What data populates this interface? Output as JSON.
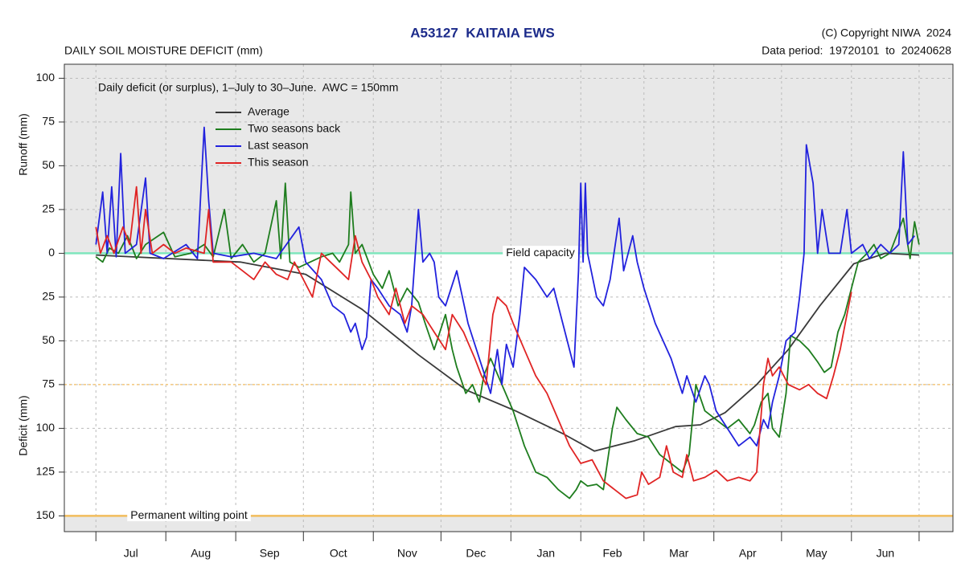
{
  "chart_data": {
    "type": "line",
    "title": "A53127  KAITAIA EWS",
    "copyright": "(C) Copyright NIWA  2024",
    "subtitle": "DAILY SOIL MOISTURE DEFICIT (mm)",
    "data_period": "Data period:  19720101  to  20240628",
    "note": "Daily deficit (or surplus), 1–July to 30–June.  AWC = 150mm",
    "ylabel_top": "Runoff (mm)",
    "ylabel_bottom": "Deficit (mm)",
    "categories": [
      "Jul",
      "Aug",
      "Sep",
      "Oct",
      "Nov",
      "Dec",
      "Jan",
      "Feb",
      "Mar",
      "Apr",
      "May",
      "Jun"
    ],
    "xticks": [
      0,
      31,
      62,
      92,
      123,
      153,
      184,
      215,
      243,
      274,
      304,
      335,
      365
    ],
    "xlim": [
      -14,
      380
    ],
    "ylim": [
      -159,
      108
    ],
    "yticks": [
      100,
      75,
      50,
      25,
      0,
      {
        "value": -25,
        "label": "25"
      },
      {
        "value": -50,
        "label": "50"
      },
      {
        "value": -75,
        "label": "75"
      },
      {
        "value": -100,
        "label": "100"
      },
      {
        "value": -125,
        "label": "125"
      },
      {
        "value": -150,
        "label": "150"
      }
    ],
    "grid": true,
    "reference_lines": [
      {
        "value": 0,
        "label": "Field capacity",
        "color": "#7fe6bd",
        "shade": "above"
      },
      {
        "value": -150,
        "label": "Permanent wilting point",
        "color": "#f2bd5c",
        "shade": "below"
      },
      {
        "value": -75,
        "color": "#f5c77a",
        "style": "dotted"
      }
    ],
    "series": [
      {
        "name": "Average",
        "color": "#3a3a3a",
        "x": [
          0,
          64,
          93,
          118,
          143,
          164,
          186,
          207,
          221,
          239,
          257,
          268,
          279,
          293,
          307,
          321,
          336,
          350,
          365
        ],
        "values": [
          -1,
          -5,
          -12,
          -32,
          -58,
          -78,
          -90,
          -103,
          -113,
          -107,
          -99,
          -98,
          -91,
          -75,
          -55,
          -30,
          -6,
          0,
          -1
        ]
      },
      {
        "name": "Two seasons back",
        "color": "#1e7d1e",
        "x": [
          0,
          3,
          6,
          10,
          14,
          18,
          22,
          30,
          35,
          42,
          48,
          52,
          57,
          60,
          65,
          70,
          75,
          80,
          82,
          84,
          86,
          90,
          95,
          100,
          105,
          108,
          112,
          113,
          115,
          118,
          123,
          127,
          130,
          134,
          138,
          143,
          146,
          150,
          155,
          158,
          160,
          164,
          167,
          170,
          172,
          175,
          180,
          185,
          190,
          195,
          200,
          205,
          210,
          213,
          215,
          218,
          222,
          225,
          229,
          231,
          235,
          240,
          245,
          250,
          255,
          260,
          263,
          266,
          270,
          275,
          280,
          285,
          290,
          292,
          295,
          298,
          300,
          303,
          306,
          308,
          312,
          316,
          320,
          323,
          326,
          329,
          332,
          335,
          338,
          342,
          345,
          348,
          352,
          355,
          358,
          361,
          363,
          365
        ],
        "values": [
          -2,
          -5,
          3,
          0,
          10,
          -3,
          5,
          12,
          -2,
          0,
          5,
          -2,
          25,
          -3,
          5,
          -5,
          0,
          30,
          -3,
          40,
          -5,
          -8,
          -5,
          -2,
          0,
          -5,
          5,
          35,
          0,
          5,
          -12,
          -20,
          -10,
          -30,
          -20,
          -28,
          -40,
          -55,
          -35,
          -55,
          -65,
          -80,
          -75,
          -85,
          -70,
          -60,
          -75,
          -90,
          -110,
          -125,
          -128,
          -135,
          -140,
          -135,
          -130,
          -133,
          -132,
          -135,
          -100,
          -88,
          -95,
          -103,
          -105,
          -115,
          -120,
          -125,
          -115,
          -75,
          -90,
          -95,
          -100,
          -95,
          -103,
          -98,
          -85,
          -80,
          -100,
          -105,
          -80,
          -47,
          -50,
          -55,
          -62,
          -68,
          -65,
          -45,
          -35,
          -20,
          -5,
          0,
          5,
          -3,
          0,
          10,
          20,
          -3,
          18,
          5
        ]
      },
      {
        "name": "Last season",
        "color": "#2222dd",
        "x": [
          0,
          3,
          5,
          7,
          9,
          11,
          13,
          18,
          22,
          24,
          30,
          40,
          45,
          48,
          50,
          52,
          60,
          70,
          80,
          90,
          93,
          100,
          105,
          110,
          113,
          115,
          118,
          120,
          122,
          125,
          130,
          135,
          138,
          140,
          143,
          145,
          148,
          150,
          152,
          155,
          160,
          165,
          170,
          175,
          178,
          180,
          182,
          185,
          188,
          190,
          195,
          200,
          203,
          208,
          212,
          214,
          215,
          216,
          217,
          218,
          222,
          225,
          228,
          232,
          234,
          238,
          240,
          243,
          248,
          255,
          260,
          262,
          266,
          270,
          272,
          275,
          280,
          285,
          290,
          293,
          296,
          298,
          300,
          303,
          306,
          310,
          312,
          314,
          315,
          318,
          320,
          322,
          325,
          330,
          333,
          335,
          340,
          343,
          348,
          352,
          356,
          358,
          360,
          363
        ],
        "values": [
          5,
          35,
          0,
          38,
          -2,
          57,
          0,
          5,
          43,
          0,
          -3,
          5,
          -3,
          72,
          30,
          0,
          -2,
          0,
          -3,
          15,
          -5,
          -15,
          -30,
          -35,
          -45,
          -40,
          -55,
          -48,
          -15,
          -20,
          -30,
          -35,
          -45,
          -30,
          25,
          -5,
          0,
          -5,
          -25,
          -30,
          -10,
          -40,
          -60,
          -80,
          -55,
          -75,
          -52,
          -65,
          -35,
          -8,
          -15,
          -25,
          -20,
          -45,
          -65,
          -10,
          40,
          -5,
          40,
          0,
          -25,
          -30,
          -15,
          20,
          -10,
          10,
          -5,
          -20,
          -40,
          -60,
          -80,
          -70,
          -85,
          -70,
          -75,
          -90,
          -100,
          -110,
          -105,
          -110,
          -95,
          -100,
          -85,
          -70,
          -50,
          -45,
          -25,
          0,
          62,
          40,
          0,
          25,
          0,
          0,
          25,
          0,
          5,
          -3,
          5,
          0,
          5,
          58,
          5,
          10
        ]
      },
      {
        "name": "This season",
        "color": "#e02424",
        "x": [
          0,
          2,
          5,
          8,
          12,
          15,
          18,
          20,
          22,
          25,
          30,
          35,
          40,
          48,
          50,
          52,
          60,
          65,
          70,
          75,
          80,
          85,
          88,
          92,
          96,
          100,
          104,
          108,
          112,
          115,
          118,
          122,
          125,
          130,
          133,
          137,
          140,
          145,
          150,
          155,
          158,
          163,
          168,
          171,
          173,
          176,
          178,
          182,
          185,
          190,
          195,
          200,
          205,
          210,
          215,
          220,
          225,
          230,
          235,
          240,
          242,
          245,
          250,
          253,
          256,
          260,
          262,
          265,
          270,
          275,
          280,
          285,
          290,
          293,
          296,
          298,
          300,
          303,
          307,
          312,
          316,
          320,
          324,
          327,
          330,
          333,
          335
        ],
        "values": [
          15,
          0,
          10,
          0,
          15,
          5,
          38,
          0,
          25,
          0,
          5,
          0,
          3,
          0,
          25,
          -5,
          -5,
          -10,
          -15,
          -5,
          -12,
          -15,
          -5,
          -15,
          -25,
          0,
          -5,
          -10,
          -15,
          10,
          -5,
          -15,
          -25,
          -35,
          -20,
          -40,
          -30,
          -35,
          -45,
          -55,
          -35,
          -45,
          -60,
          -70,
          -75,
          -35,
          -25,
          -30,
          -40,
          -55,
          -70,
          -80,
          -95,
          -110,
          -120,
          -118,
          -130,
          -135,
          -140,
          -138,
          -125,
          -132,
          -128,
          -110,
          -125,
          -128,
          -115,
          -130,
          -128,
          -124,
          -130,
          -128,
          -130,
          -125,
          -75,
          -60,
          -70,
          -65,
          -75,
          -78,
          -75,
          -80,
          -83,
          -70,
          -55,
          -35,
          -22
        ]
      }
    ]
  }
}
